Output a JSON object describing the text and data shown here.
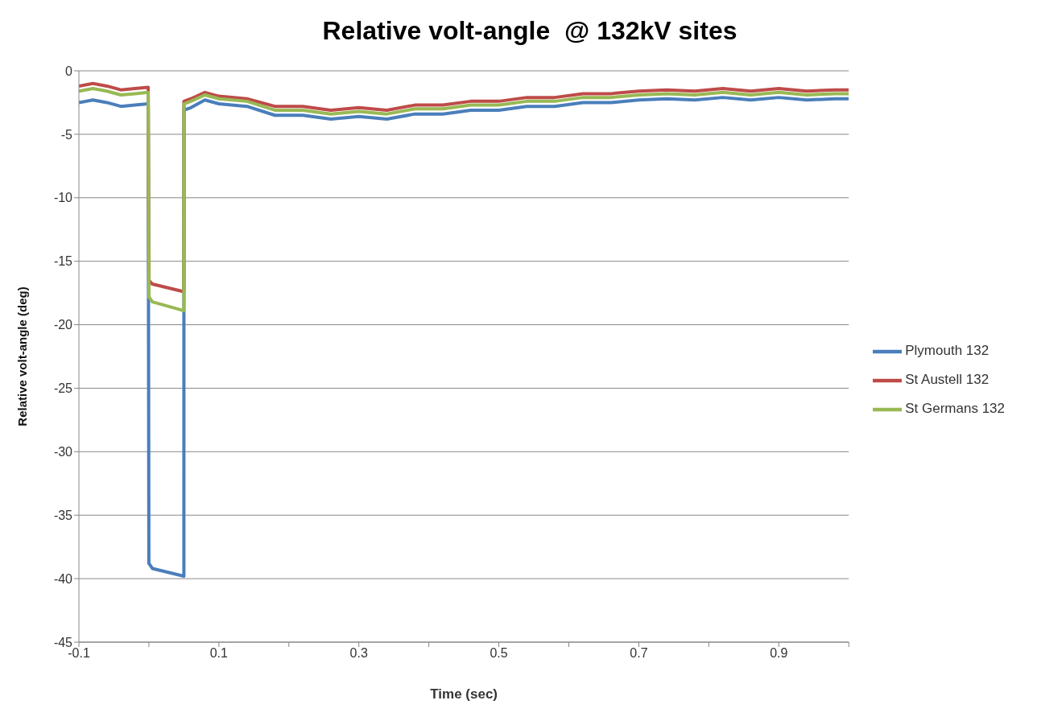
{
  "chart_data": {
    "type": "line",
    "title": "Relative volt-angle  @ 132kV sites",
    "xlabel": "Time (sec)",
    "ylabel": "Relative volt-angle (deg)",
    "x": [
      -0.1,
      -0.08,
      -0.06,
      -0.04,
      -0.02,
      -0.001,
      0,
      0.005,
      0.05,
      0.0501,
      0.06,
      0.08,
      0.1,
      0.14,
      0.18,
      0.22,
      0.26,
      0.3,
      0.34,
      0.38,
      0.42,
      0.46,
      0.5,
      0.54,
      0.58,
      0.62,
      0.66,
      0.7,
      0.74,
      0.78,
      0.82,
      0.86,
      0.9,
      0.94,
      0.98,
      1.0
    ],
    "series": [
      {
        "name": "Plymouth 132",
        "color": "#4a7ebb",
        "values": [
          -2.5,
          -2.3,
          -2.5,
          -2.8,
          -2.7,
          -2.6,
          -38.8,
          -39.2,
          -39.8,
          -3.1,
          -2.9,
          -2.3,
          -2.6,
          -2.8,
          -3.5,
          -3.5,
          -3.8,
          -3.6,
          -3.8,
          -3.4,
          -3.4,
          -3.1,
          -3.1,
          -2.8,
          -2.8,
          -2.5,
          -2.5,
          -2.3,
          -2.2,
          -2.3,
          -2.1,
          -2.3,
          -2.1,
          -2.3,
          -2.2,
          -2.2
        ]
      },
      {
        "name": "St Austell 132",
        "color": "#be4b48",
        "values": [
          -1.2,
          -1.0,
          -1.2,
          -1.5,
          -1.4,
          -1.3,
          -16.5,
          -16.8,
          -17.4,
          -2.4,
          -2.2,
          -1.7,
          -2.0,
          -2.2,
          -2.8,
          -2.8,
          -3.1,
          -2.9,
          -3.1,
          -2.7,
          -2.7,
          -2.4,
          -2.4,
          -2.1,
          -2.1,
          -1.8,
          -1.8,
          -1.6,
          -1.5,
          -1.6,
          -1.4,
          -1.6,
          -1.4,
          -1.6,
          -1.5,
          -1.5
        ]
      },
      {
        "name": "St Germans 132",
        "color": "#98b954",
        "values": [
          -1.6,
          -1.4,
          -1.6,
          -1.9,
          -1.8,
          -1.7,
          -17.8,
          -18.2,
          -18.9,
          -2.6,
          -2.4,
          -1.9,
          -2.2,
          -2.4,
          -3.1,
          -3.1,
          -3.4,
          -3.2,
          -3.4,
          -3.0,
          -3.0,
          -2.7,
          -2.7,
          -2.4,
          -2.4,
          -2.1,
          -2.1,
          -1.9,
          -1.8,
          -1.9,
          -1.7,
          -1.9,
          -1.7,
          -1.9,
          -1.8,
          -1.8
        ]
      }
    ],
    "xlim": [
      -0.1,
      1.0
    ],
    "xticks": [
      -0.1,
      {
        "value": 0,
        "label": null
      },
      0.1,
      {
        "value": 0.2,
        "label": null
      },
      0.3,
      {
        "value": 0.4,
        "label": null
      },
      0.5,
      {
        "value": 0.6,
        "label": null
      },
      0.7,
      {
        "value": 0.8,
        "label": null
      },
      0.9,
      {
        "value": 1.0,
        "label": null
      }
    ],
    "ylim": [
      -45,
      0
    ],
    "yticks": [
      -45,
      -40,
      -35,
      -30,
      -25,
      -20,
      -15,
      -10,
      -5,
      0
    ],
    "grid": "y",
    "legend": "right",
    "marker": "none",
    "line_style": "solid"
  }
}
